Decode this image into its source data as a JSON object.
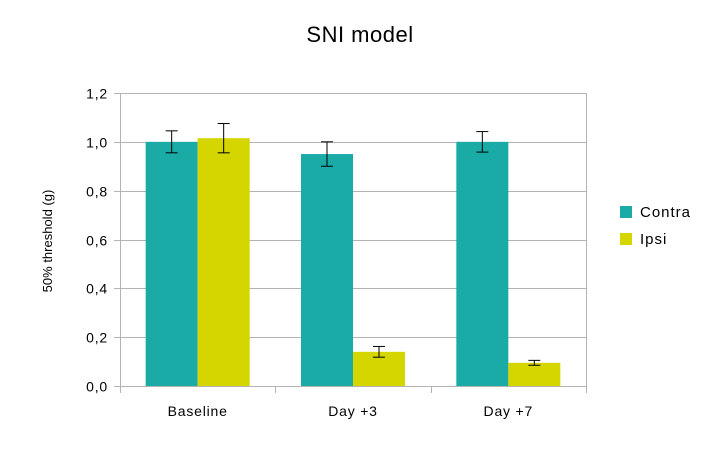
{
  "chart_data": {
    "type": "bar",
    "title": "SNI model",
    "xlabel": "",
    "ylabel": "50% threshold (g)",
    "categories": [
      "Baseline",
      "Day +3",
      "Day +7"
    ],
    "series": [
      {
        "name": "Contra",
        "color": "#1aaba7",
        "values": [
          1.0,
          0.95,
          1.0
        ],
        "errors": [
          0.045,
          0.05,
          0.042
        ]
      },
      {
        "name": "Ipsi",
        "color": "#d5d600",
        "values": [
          1.015,
          0.14,
          0.095
        ],
        "errors": [
          0.06,
          0.022,
          0.01
        ]
      }
    ],
    "ylim": [
      0,
      1.2
    ],
    "yticks": [
      "0,0",
      "0,2",
      "0,4",
      "0,6",
      "0,8",
      "1,0",
      "1,2"
    ],
    "ytick_values": [
      0,
      0.2,
      0.4,
      0.6,
      0.8,
      1.0,
      1.2
    ],
    "grid": true,
    "legend_position": "right",
    "colors": {
      "grid": "#b3b3b3",
      "axis": "#b3b3b3",
      "error_bar": "#000000"
    }
  }
}
